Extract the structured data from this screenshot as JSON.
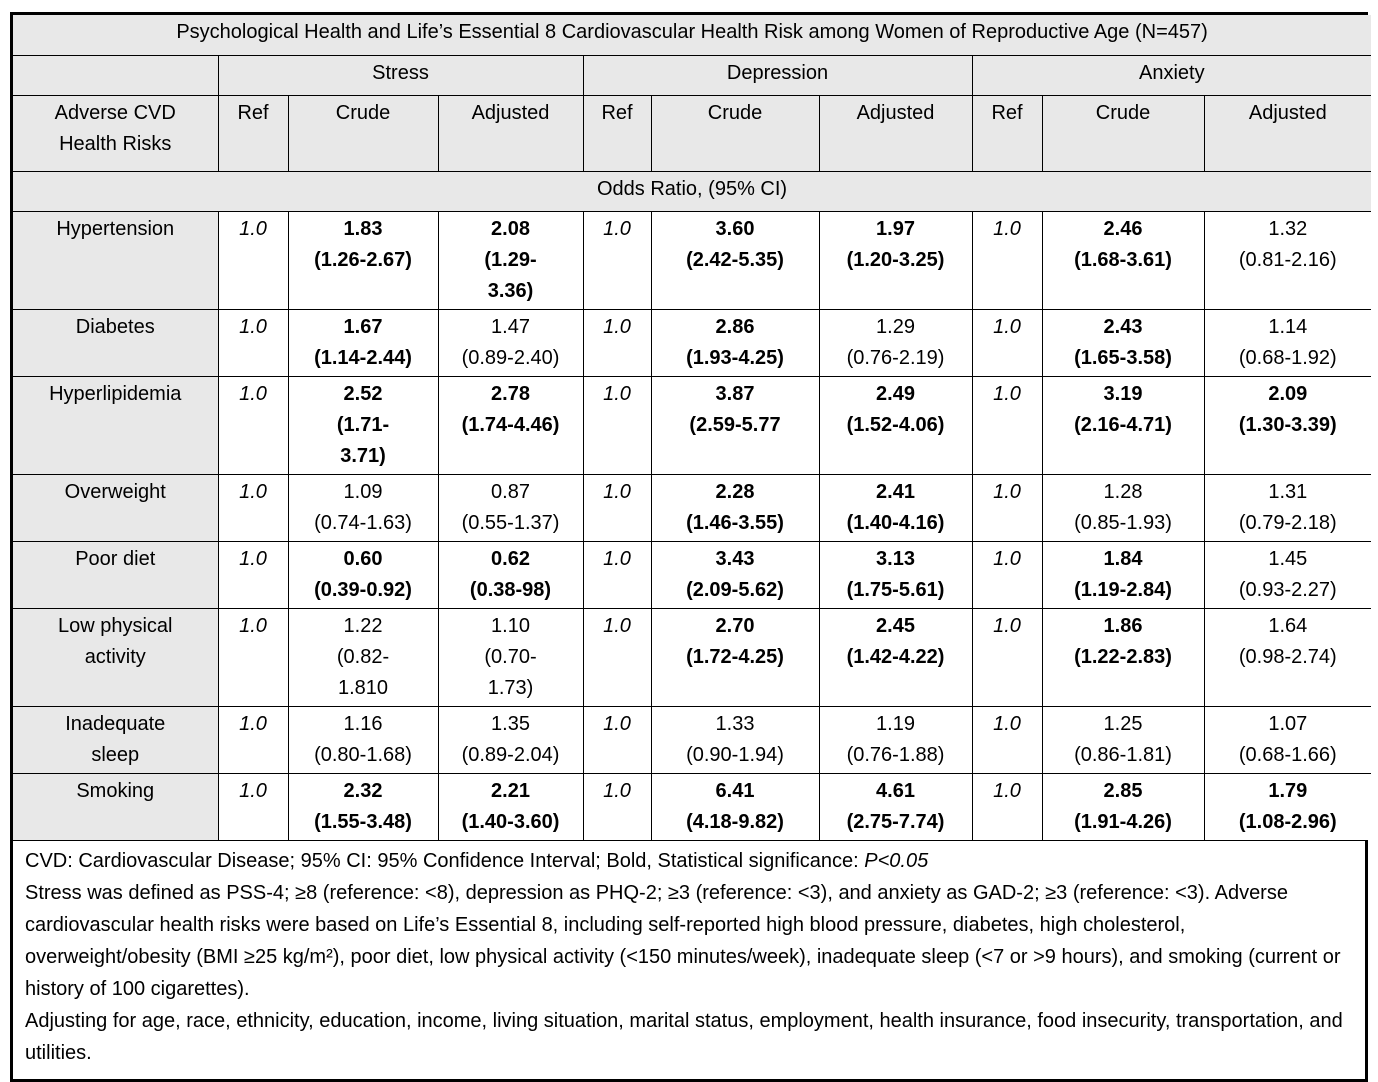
{
  "table": {
    "title": "Psychological Health and Life’s Essential 8 Cardiovascular Health Risk among Women of Reproductive Age (N=457)",
    "row_header": "Adverse CVD\nHealth Risks",
    "spanner": "Odds Ratio, (95% CI)",
    "groups": [
      {
        "label": "Stress",
        "columns": [
          "Ref",
          "Crude",
          "Adjusted"
        ]
      },
      {
        "label": "Depression",
        "columns": [
          "Ref",
          "Crude",
          "Adjusted"
        ]
      },
      {
        "label": "Anxiety",
        "columns": [
          "Ref",
          "Crude",
          "Adjusted"
        ]
      }
    ],
    "rows": [
      {
        "label": "Hypertension",
        "cells": [
          {
            "text": "1.0"
          },
          {
            "text": "1.83\n(1.26-2.67)",
            "bold": true
          },
          {
            "text": "2.08\n(1.29-\n3.36)",
            "bold": true
          },
          {
            "text": "1.0"
          },
          {
            "text": "3.60\n(2.42-5.35)",
            "bold": true
          },
          {
            "text": "1.97\n(1.20-3.25)",
            "bold": true
          },
          {
            "text": "1.0"
          },
          {
            "text": "2.46\n(1.68-3.61)",
            "bold": true
          },
          {
            "text": "1.32\n(0.81-2.16)"
          }
        ]
      },
      {
        "label": "Diabetes",
        "cells": [
          {
            "text": "1.0"
          },
          {
            "text": "1.67\n(1.14-2.44)",
            "bold": true
          },
          {
            "text": "1.47\n(0.89-2.40)"
          },
          {
            "text": "1.0"
          },
          {
            "text": "2.86\n(1.93-4.25)",
            "bold": true
          },
          {
            "text": "1.29\n(0.76-2.19)"
          },
          {
            "text": "1.0"
          },
          {
            "text": "2.43\n(1.65-3.58)",
            "bold": true
          },
          {
            "text": "1.14\n(0.68-1.92)"
          }
        ]
      },
      {
        "label": "Hyperlipidemia",
        "cells": [
          {
            "text": "1.0"
          },
          {
            "text": "2.52\n(1.71-\n3.71)",
            "bold": true
          },
          {
            "text": "2.78\n(1.74-4.46)",
            "bold": true
          },
          {
            "text": "1.0"
          },
          {
            "text": "3.87\n(2.59-5.77",
            "bold": true
          },
          {
            "text": "2.49\n(1.52-4.06)",
            "bold": true
          },
          {
            "text": "1.0"
          },
          {
            "text": "3.19\n(2.16-4.71)",
            "bold": true
          },
          {
            "text": "2.09\n(1.30-3.39)",
            "bold": true
          }
        ]
      },
      {
        "label": "Overweight",
        "cells": [
          {
            "text": "1.0"
          },
          {
            "text": "1.09\n(0.74-1.63)"
          },
          {
            "text": "0.87\n(0.55-1.37)"
          },
          {
            "text": "1.0"
          },
          {
            "text": "2.28\n(1.46-3.55)",
            "bold": true
          },
          {
            "text": "2.41\n(1.40-4.16)",
            "bold": true
          },
          {
            "text": "1.0"
          },
          {
            "text": "1.28\n(0.85-1.93)"
          },
          {
            "text": "1.31\n(0.79-2.18)"
          }
        ]
      },
      {
        "label": "Poor diet",
        "cells": [
          {
            "text": "1.0"
          },
          {
            "text": "0.60\n(0.39-0.92)",
            "bold": true
          },
          {
            "text": "0.62\n(0.38-98)",
            "bold": true
          },
          {
            "text": "1.0"
          },
          {
            "text": "3.43\n(2.09-5.62)",
            "bold": true
          },
          {
            "text": "3.13\n(1.75-5.61)",
            "bold": true
          },
          {
            "text": "1.0"
          },
          {
            "text": "1.84\n(1.19-2.84)",
            "bold": true
          },
          {
            "text": "1.45\n(0.93-2.27)"
          }
        ]
      },
      {
        "label": "Low physical\nactivity",
        "cells": [
          {
            "text": "1.0"
          },
          {
            "text": "1.22\n(0.82-\n1.810"
          },
          {
            "text": "1.10\n(0.70-\n1.73)"
          },
          {
            "text": "1.0"
          },
          {
            "text": "2.70\n(1.72-4.25)",
            "bold": true
          },
          {
            "text": "2.45\n(1.42-4.22)",
            "bold": true
          },
          {
            "text": "1.0"
          },
          {
            "text": "1.86\n(1.22-2.83)",
            "bold": true
          },
          {
            "text": "1.64\n(0.98-2.74)"
          }
        ]
      },
      {
        "label": "Inadequate\nsleep",
        "cells": [
          {
            "text": "1.0"
          },
          {
            "text": "1.16\n(0.80-1.68)"
          },
          {
            "text": "1.35\n(0.89-2.04)"
          },
          {
            "text": "1.0"
          },
          {
            "text": "1.33\n(0.90-1.94)"
          },
          {
            "text": "1.19\n(0.76-1.88)"
          },
          {
            "text": "1.0"
          },
          {
            "text": "1.25\n(0.86-1.81)"
          },
          {
            "text": "1.07\n(0.68-1.66)"
          }
        ]
      },
      {
        "label": "Smoking",
        "cells": [
          {
            "text": "1.0"
          },
          {
            "text": "2.32\n(1.55-3.48)",
            "bold": true
          },
          {
            "text": "2.21\n(1.40-3.60)",
            "bold": true
          },
          {
            "text": "1.0"
          },
          {
            "text": "6.41\n(4.18-9.82)",
            "bold": true
          },
          {
            "text": "4.61\n(2.75-7.74)",
            "bold": true
          },
          {
            "text": "1.0"
          },
          {
            "text": "2.85\n(1.91-4.26)",
            "bold": true
          },
          {
            "text": "1.79\n(1.08-2.96)",
            "bold": true
          }
        ]
      }
    ]
  },
  "footnotes": {
    "line1_prefix": "CVD: Cardiovascular Disease; 95% CI: 95% Confidence Interval; Bold, Statistical significance: ",
    "line1_italic": "P<0.05",
    "para2": "Stress was defined as PSS-4; ≥8 (reference: <8), depression as PHQ-2; ≥3 (reference: <3), and anxiety as GAD-2; ≥3 (reference: <3). Adverse cardiovascular health risks were based on Life’s Essential 8, including self-reported high blood pressure, diabetes, high cholesterol, overweight/obesity (BMI ≥25 kg/m²), poor diet, low physical activity (<150 minutes/week), inadequate sleep (<7 or >9 hours), and smoking (current or history of 100 cigarettes).",
    "para3": "Adjusting for age, race, ethnicity, education, income, living situation, marital status, employment, health insurance, food insecurity, transportation, and utilities."
  },
  "colors": {
    "header_bg": "#e8e8e8",
    "border": "#000000",
    "cell_bg": "#ffffff"
  }
}
